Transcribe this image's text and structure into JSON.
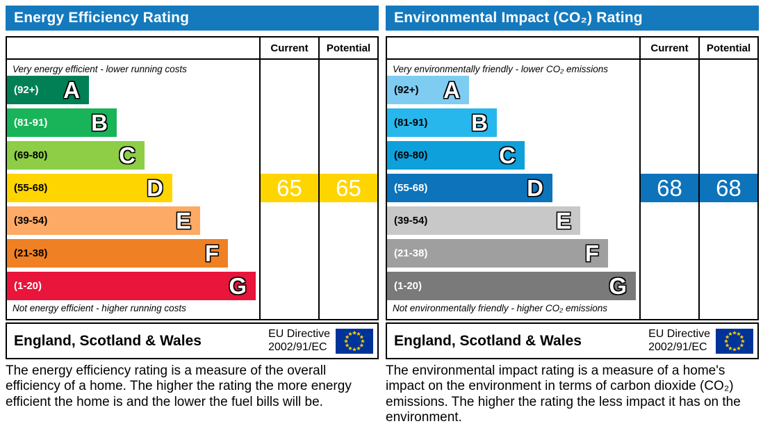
{
  "chart_data": [
    {
      "type": "bar",
      "title": "Energy Efficiency Rating",
      "categories": [
        "A",
        "B",
        "C",
        "D",
        "E",
        "F",
        "G"
      ],
      "ranges": [
        "(92+)",
        "(81-91)",
        "(69-80)",
        "(55-68)",
        "(39-54)",
        "(21-38)",
        "(1-20)"
      ],
      "columns": [
        "Current",
        "Potential"
      ],
      "current_value": 65,
      "current_band": "D",
      "potential_value": 65,
      "potential_band": "D",
      "top_note": "Very energy efficient - lower running costs",
      "bottom_note": "Not energy efficient - higher running costs"
    },
    {
      "type": "bar",
      "title": "Environmental Impact (CO₂) Rating",
      "categories": [
        "A",
        "B",
        "C",
        "D",
        "E",
        "F",
        "G"
      ],
      "ranges": [
        "(92+)",
        "(81-91)",
        "(69-80)",
        "(55-68)",
        "(39-54)",
        "(21-38)",
        "(1-20)"
      ],
      "columns": [
        "Current",
        "Potential"
      ],
      "current_value": 68,
      "current_band": "D",
      "potential_value": 68,
      "potential_band": "D",
      "top_note": "Very environmentally friendly - lower CO₂ emissions",
      "bottom_note": "Not environmentally friendly - higher CO₂ emissions"
    }
  ],
  "theme": {
    "header_blue": "#1479bd",
    "border_black": "#000000",
    "eu_flag_blue": "#003399",
    "eu_flag_star_yellow": "#ffcc00"
  },
  "panels": [
    {
      "title": "Energy Efficiency Rating",
      "header": {
        "current": "Current",
        "potential": "Potential"
      },
      "top_caption": "Very energy efficient - lower running costs",
      "bottom_caption": "Not energy efficient - higher running costs",
      "bands": [
        {
          "letter": "A",
          "range": "(92+)",
          "color": "#008054",
          "text_color": "#ffffff"
        },
        {
          "letter": "B",
          "range": "(81-91)",
          "color": "#19b459",
          "text_color": "#ffffff"
        },
        {
          "letter": "C",
          "range": "(69-80)",
          "color": "#8dce46",
          "text_color": "#000000"
        },
        {
          "letter": "D",
          "range": "(55-68)",
          "color": "#ffd500",
          "text_color": "#000000"
        },
        {
          "letter": "E",
          "range": "(39-54)",
          "color": "#fcaa65",
          "text_color": "#000000"
        },
        {
          "letter": "F",
          "range": "(21-38)",
          "color": "#ef8023",
          "text_color": "#000000"
        },
        {
          "letter": "G",
          "range": "(1-20)",
          "color": "#e9153b",
          "text_color": "#ffffff"
        }
      ],
      "current": {
        "value": "65",
        "color": "#ffd500"
      },
      "potential": {
        "value": "65",
        "color": "#ffd500"
      },
      "footer": {
        "region": "England, Scotland & Wales",
        "directive_line1": "EU Directive",
        "directive_line2": "2002/91/EC"
      },
      "description": "The energy efficiency rating is a measure of the overall efficiency of a home. The higher the rating the more energy efficient the home is and the lower the fuel bills will be."
    },
    {
      "title": "Environmental Impact (CO₂) Rating",
      "header": {
        "current": "Current",
        "potential": "Potential"
      },
      "top_caption": "Very environmentally friendly - lower CO₂ emissions",
      "bottom_caption": "Not environmentally friendly - higher CO₂ emissions",
      "bands": [
        {
          "letter": "A",
          "range": "(92+)",
          "color": "#7fccf2",
          "text_color": "#000000"
        },
        {
          "letter": "B",
          "range": "(81-91)",
          "color": "#28b7ec",
          "text_color": "#000000"
        },
        {
          "letter": "C",
          "range": "(69-80)",
          "color": "#0ea0da",
          "text_color": "#000000"
        },
        {
          "letter": "D",
          "range": "(55-68)",
          "color": "#0d73ba",
          "text_color": "#ffffff"
        },
        {
          "letter": "E",
          "range": "(39-54)",
          "color": "#c8c8c8",
          "text_color": "#000000"
        },
        {
          "letter": "F",
          "range": "(21-38)",
          "color": "#9f9f9f",
          "text_color": "#ffffff"
        },
        {
          "letter": "G",
          "range": "(1-20)",
          "color": "#7a7a7a",
          "text_color": "#ffffff"
        }
      ],
      "current": {
        "value": "68",
        "color": "#0d73ba"
      },
      "potential": {
        "value": "68",
        "color": "#0d73ba"
      },
      "footer": {
        "region": "England, Scotland & Wales",
        "directive_line1": "EU Directive",
        "directive_line2": "2002/91/EC"
      },
      "description": "The environmental impact rating is a measure of a home's impact on the environment in terms of carbon dioxide (CO₂) emissions. The higher the rating the less impact it has on the environment."
    }
  ]
}
